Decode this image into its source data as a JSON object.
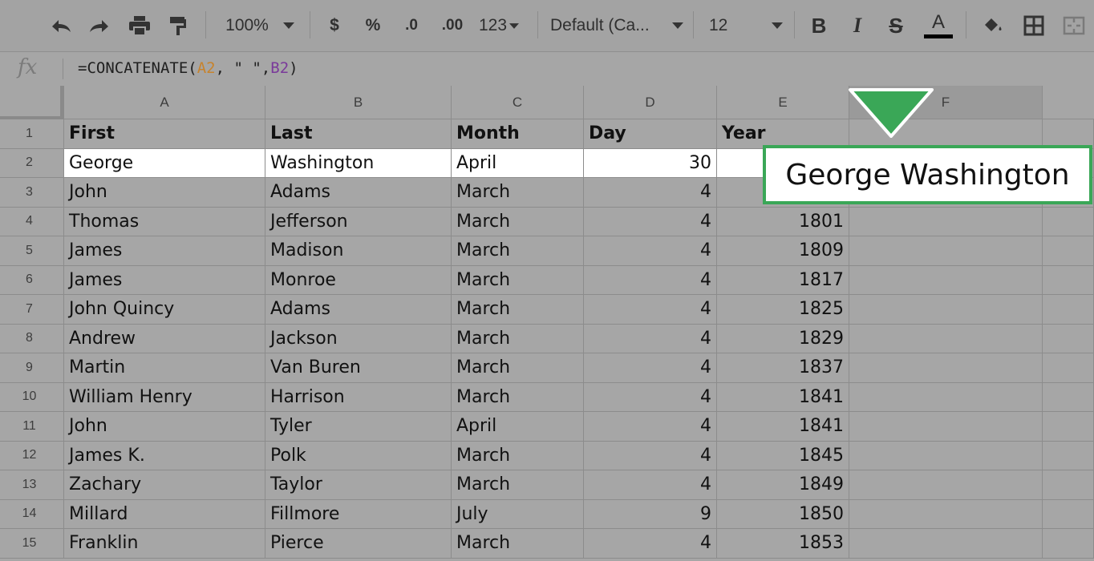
{
  "toolbar": {
    "zoom": "100%",
    "currency": "$",
    "percent": "%",
    "decrease_decimal": ".0",
    "increase_decimal": ".00",
    "more_formats": "123",
    "font": "Default (Ca...",
    "font_size": "12",
    "bold": "B",
    "italic": "I",
    "strike": "S",
    "text_color": "A",
    "icons": [
      "undo-icon",
      "redo-icon",
      "print-icon",
      "paint-format-icon",
      "chevron-down-icon",
      "paint-bucket-icon",
      "borders-icon",
      "merge-cells-icon"
    ]
  },
  "formula_bar": {
    "fx": "fx",
    "formula_parts": [
      "=CONCATENATE(",
      "A2",
      ", \" \",",
      "B2",
      ")"
    ],
    "colors": {
      "a2": "#c7832d",
      "b2": "#7a3a9a"
    }
  },
  "columns": [
    "A",
    "B",
    "C",
    "D",
    "E",
    "F"
  ],
  "rows": [
    {
      "num": "1",
      "first": "First",
      "last": "Last",
      "month": "Month",
      "day": "Day",
      "year": "Year"
    },
    {
      "num": "2",
      "first": "George",
      "last": "Washington",
      "month": "April",
      "day": "30",
      "year": ""
    },
    {
      "num": "3",
      "first": "John",
      "last": "Adams",
      "month": "March",
      "day": "4",
      "year": ""
    },
    {
      "num": "4",
      "first": "Thomas",
      "last": "Jefferson",
      "month": "March",
      "day": "4",
      "year": "1801"
    },
    {
      "num": "5",
      "first": "James",
      "last": "Madison",
      "month": "March",
      "day": "4",
      "year": "1809"
    },
    {
      "num": "6",
      "first": "James",
      "last": "Monroe",
      "month": "March",
      "day": "4",
      "year": "1817"
    },
    {
      "num": "7",
      "first": "John Quincy",
      "last": "Adams",
      "month": "March",
      "day": "4",
      "year": "1825"
    },
    {
      "num": "8",
      "first": "Andrew",
      "last": "Jackson",
      "month": "March",
      "day": "4",
      "year": "1829"
    },
    {
      "num": "9",
      "first": "Martin",
      "last": "Van Buren",
      "month": "March",
      "day": "4",
      "year": "1837"
    },
    {
      "num": "10",
      "first": "William Henry",
      "last": "Harrison",
      "month": "March",
      "day": "4",
      "year": "1841"
    },
    {
      "num": "11",
      "first": "John",
      "last": "Tyler",
      "month": "April",
      "day": "4",
      "year": "1841"
    },
    {
      "num": "12",
      "first": "James K.",
      "last": "Polk",
      "month": "March",
      "day": "4",
      "year": "1845"
    },
    {
      "num": "13",
      "first": "Zachary",
      "last": "Taylor",
      "month": "March",
      "day": "4",
      "year": "1849"
    },
    {
      "num": "14",
      "first": "Millard",
      "last": "Fillmore",
      "month": "July",
      "day": "9",
      "year": "1850"
    },
    {
      "num": "15",
      "first": "Franklin",
      "last": "Pierce",
      "month": "March",
      "day": "4",
      "year": "1853"
    }
  ],
  "callout": {
    "text": "George Washington",
    "border_color": "#3aa757"
  }
}
